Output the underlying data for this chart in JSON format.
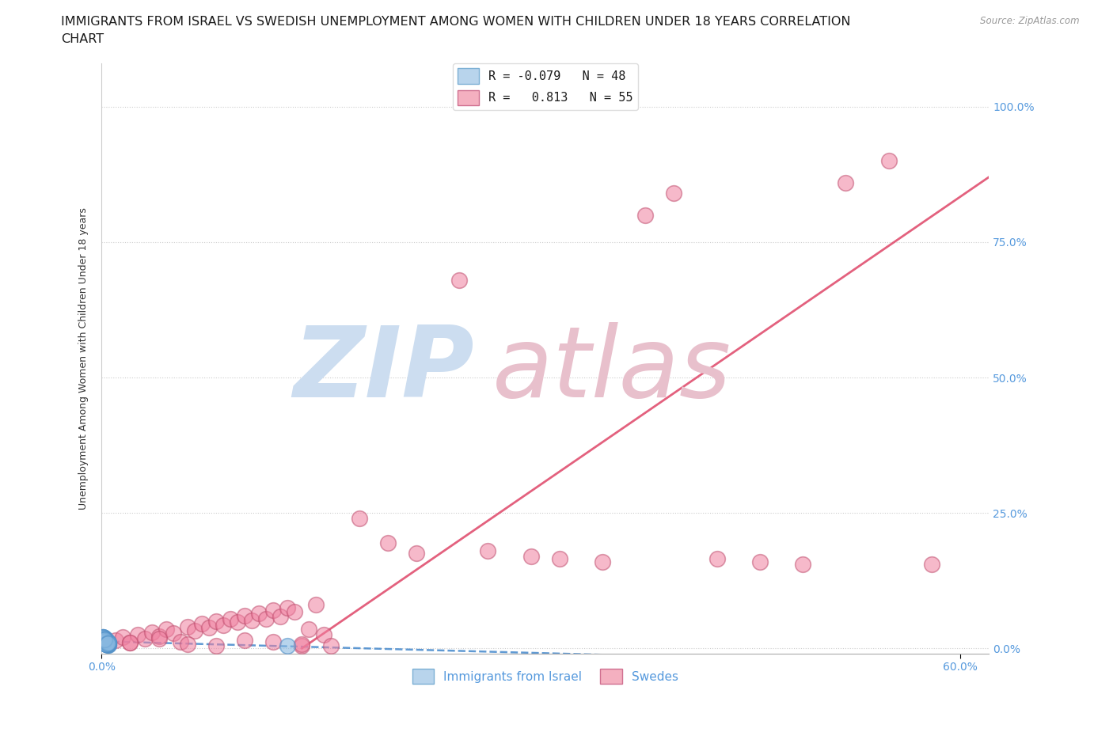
{
  "title_line1": "IMMIGRANTS FROM ISRAEL VS SWEDISH UNEMPLOYMENT AMONG WOMEN WITH CHILDREN UNDER 18 YEARS CORRELATION",
  "title_line2": "CHART",
  "source": "Source: ZipAtlas.com",
  "ylabel": "Unemployment Among Women with Children Under 18 years",
  "xlim": [
    0.0,
    0.62
  ],
  "ylim": [
    -0.01,
    1.08
  ],
  "ytick_positions": [
    0.0,
    0.25,
    0.5,
    0.75,
    1.0
  ],
  "yticklabels": [
    "0.0%",
    "25.0%",
    "50.0%",
    "75.0%",
    "100.0%"
  ],
  "xtick_left": "0.0%",
  "xtick_right": "60.0%",
  "legend1_label": "R = -0.079   N = 48",
  "legend2_label": "R =   0.813   N = 55",
  "legend1_patch_color": "#b8d4ec",
  "legend2_patch_color": "#f4b0c0",
  "series1_color": "#88b8e0",
  "series1_edge": "#5090c8",
  "series2_color": "#f080a0",
  "series2_edge": "#c05070",
  "trend1_color": "#4488cc",
  "trend2_color": "#e05070",
  "watermark_zip_color": "#ccddf0",
  "watermark_atlas_color": "#e8c0cc",
  "bottom_legend1": "Immigrants from Israel",
  "bottom_legend2": "Swedes",
  "tick_color": "#5599dd",
  "title_fontsize": 11.5,
  "axis_label_fontsize": 9,
  "tick_fontsize": 10,
  "legend_fontsize": 11,
  "israel_x": [
    0.001,
    0.002,
    0.003,
    0.001,
    0.004,
    0.002,
    0.005,
    0.003,
    0.001,
    0.002,
    0.004,
    0.003,
    0.002,
    0.005,
    0.001,
    0.003,
    0.002,
    0.004,
    0.001,
    0.003,
    0.002,
    0.005,
    0.001,
    0.004,
    0.003,
    0.002,
    0.001,
    0.003,
    0.002,
    0.004,
    0.001,
    0.003,
    0.002,
    0.005,
    0.001,
    0.004,
    0.003,
    0.002,
    0.001,
    0.003,
    0.13,
    0.004,
    0.002,
    0.001,
    0.003,
    0.005,
    0.002,
    0.004
  ],
  "israel_y": [
    0.01,
    0.015,
    0.008,
    0.02,
    0.012,
    0.018,
    0.007,
    0.009,
    0.013,
    0.016,
    0.011,
    0.014,
    0.019,
    0.006,
    0.017,
    0.01,
    0.015,
    0.008,
    0.021,
    0.012,
    0.009,
    0.011,
    0.014,
    0.007,
    0.016,
    0.018,
    0.02,
    0.01,
    0.013,
    0.006,
    0.015,
    0.009,
    0.017,
    0.011,
    0.019,
    0.008,
    0.014,
    0.016,
    0.012,
    0.007,
    0.005,
    0.01,
    0.013,
    0.015,
    0.008,
    0.011,
    0.017,
    0.009
  ],
  "swedes_x": [
    0.005,
    0.01,
    0.015,
    0.02,
    0.025,
    0.03,
    0.035,
    0.04,
    0.045,
    0.05,
    0.055,
    0.06,
    0.065,
    0.07,
    0.075,
    0.08,
    0.085,
    0.09,
    0.095,
    0.1,
    0.105,
    0.11,
    0.115,
    0.12,
    0.125,
    0.13,
    0.135,
    0.14,
    0.145,
    0.15,
    0.155,
    0.02,
    0.04,
    0.06,
    0.08,
    0.1,
    0.12,
    0.14,
    0.16,
    0.18,
    0.2,
    0.22,
    0.25,
    0.27,
    0.3,
    0.32,
    0.35,
    0.38,
    0.4,
    0.43,
    0.46,
    0.49,
    0.52,
    0.55,
    0.58
  ],
  "swedes_y": [
    0.008,
    0.015,
    0.02,
    0.01,
    0.025,
    0.018,
    0.03,
    0.022,
    0.035,
    0.028,
    0.012,
    0.04,
    0.032,
    0.045,
    0.038,
    0.05,
    0.042,
    0.055,
    0.048,
    0.06,
    0.052,
    0.065,
    0.055,
    0.07,
    0.058,
    0.075,
    0.068,
    0.005,
    0.035,
    0.08,
    0.025,
    0.01,
    0.018,
    0.008,
    0.005,
    0.015,
    0.012,
    0.008,
    0.005,
    0.24,
    0.195,
    0.175,
    0.68,
    0.18,
    0.17,
    0.165,
    0.16,
    0.8,
    0.84,
    0.165,
    0.16,
    0.155,
    0.86,
    0.9,
    0.155
  ],
  "trend2_x": [
    0.14,
    0.62
  ],
  "trend2_y": [
    0.0,
    0.87
  ]
}
